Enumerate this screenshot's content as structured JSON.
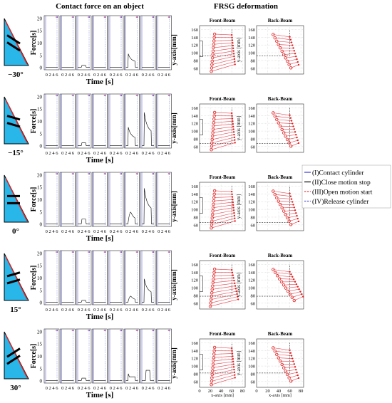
{
  "titles": {
    "contact": "Contact force on an object",
    "frsg": "FRSG deformation"
  },
  "angles": [
    "−30°",
    "−15°",
    "0°",
    "15°",
    "30°"
  ],
  "chart_data": [
    {
      "type": "line",
      "title": "Contact force on an object",
      "ylabel": "Force[s]",
      "xlabel": "Time [s]",
      "xticks": [
        "0",
        "2",
        "4",
        "6"
      ],
      "yticks": [
        "0",
        "5",
        "10",
        "15",
        "20"
      ],
      "ylim": [
        -1,
        21
      ],
      "xlim": [
        0,
        7
      ],
      "subplots_per_row": 8,
      "rows": [
        {
          "angle": "−30°",
          "peaks": [
            0,
            0,
            0.8,
            0,
            0,
            5.5,
            0,
            0
          ],
          "pulse_shape": [
            0,
            0,
            "plateau",
            0,
            0,
            "spike-decay",
            0,
            0
          ]
        },
        {
          "angle": "−15°",
          "peaks": [
            0,
            0,
            1.2,
            0,
            0,
            7.5,
            13.5,
            0
          ],
          "pulse_shape": [
            0,
            0,
            "plateau",
            0,
            0,
            "spike-decay",
            "spike-decay",
            0
          ]
        },
        {
          "angle": "0°",
          "peaks": [
            0,
            0,
            2.0,
            0,
            0,
            4.8,
            14.5,
            0
          ],
          "pulse_shape": [
            0,
            0,
            "plateau",
            0,
            0,
            "rise-decay",
            "spike-decay",
            0
          ]
        },
        {
          "angle": "15°",
          "peaks": [
            0,
            0,
            0.8,
            0,
            0,
            2.5,
            9.5,
            0
          ],
          "pulse_shape": [
            0,
            0,
            "plateau",
            0,
            0,
            "rise-decay",
            "spike-decay",
            0
          ]
        },
        {
          "angle": "30°",
          "peaks": [
            0,
            0,
            1.0,
            0,
            0,
            2.8,
            4.2,
            0
          ],
          "pulse_shape": [
            0,
            0,
            "plateau",
            0,
            0,
            "spike-plateau",
            "plateau",
            0
          ]
        }
      ]
    },
    {
      "type": "scatter",
      "title": "FRSG deformation",
      "panels": [
        "Front-Beam",
        "Back-Beam"
      ],
      "ylabel_front": "y-axis[mm]",
      "ylabel_back": "y-axis [mm]",
      "xlabel": "x-axis [mm]",
      "xticks": [
        "0",
        "20",
        "40",
        "60",
        "80"
      ],
      "yticks": [
        "60",
        "80",
        "100",
        "120",
        "140",
        "160"
      ],
      "xlim": [
        0,
        85
      ],
      "ylim": [
        45,
        170
      ],
      "front_beam": {
        "y_left_start": 148,
        "y_left_end": 52,
        "x_left": [
          28,
          22
        ],
        "x_right_top": [
          60,
          62
        ],
        "y_right_top": 145,
        "num_links": 12
      },
      "back_beam": {
        "y_left_start": 147,
        "x_left_start": 30,
        "num_links": 11
      },
      "rows_dashed_level": [
        92,
        68,
        66,
        78,
        82
      ]
    }
  ],
  "legend": [
    {
      "label": "(I)Contact cylinder",
      "color": "#3b3bd6",
      "style": "solid"
    },
    {
      "label": "(II)Close motion stop",
      "color": "#000000",
      "style": "solid"
    },
    {
      "label": "(III)Open motion start",
      "color": "#e8414c",
      "style": "dashed"
    },
    {
      "label": "(IV)Release cylinder",
      "color": "#5a5ad8",
      "style": "dashed"
    }
  ]
}
